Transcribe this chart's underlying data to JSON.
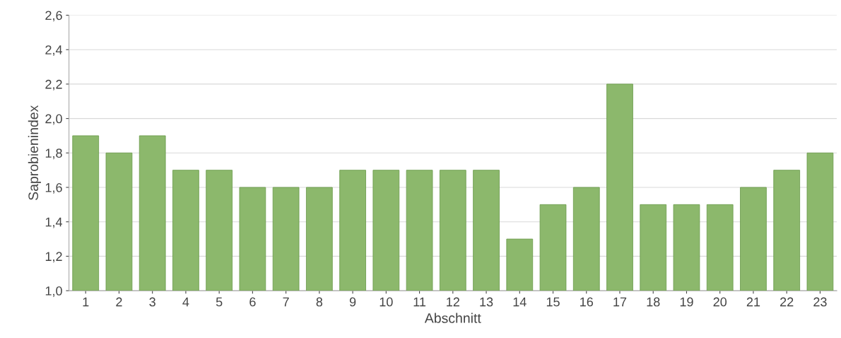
{
  "chart_data": {
    "type": "bar",
    "xlabel": "Abschnitt",
    "ylabel": "Saprobienindex",
    "categories": [
      "1",
      "2",
      "3",
      "4",
      "5",
      "6",
      "7",
      "8",
      "9",
      "10",
      "11",
      "12",
      "13",
      "14",
      "15",
      "16",
      "17",
      "18",
      "19",
      "20",
      "21",
      "22",
      "23"
    ],
    "values": [
      1.9,
      1.8,
      1.9,
      1.7,
      1.7,
      1.6,
      1.6,
      1.6,
      1.7,
      1.7,
      1.7,
      1.7,
      1.7,
      1.3,
      1.5,
      1.6,
      2.2,
      1.5,
      1.5,
      1.5,
      1.6,
      1.7,
      1.8
    ],
    "color": "#8cb86c",
    "ylim": [
      1.0,
      2.6
    ],
    "yticks": [
      {
        "value": 1.0,
        "label": "1,0"
      },
      {
        "value": 1.2,
        "label": "1,2"
      },
      {
        "value": 1.4,
        "label": "1,4"
      },
      {
        "value": 1.6,
        "label": "1,6"
      },
      {
        "value": 1.8,
        "label": "1,8"
      },
      {
        "value": 2.0,
        "label": "2,0"
      },
      {
        "value": 2.2,
        "label": "2,2"
      },
      {
        "value": 2.4,
        "label": "2,4"
      },
      {
        "value": 2.6,
        "label": "2,6"
      }
    ],
    "grid": "y",
    "legend": false
  }
}
